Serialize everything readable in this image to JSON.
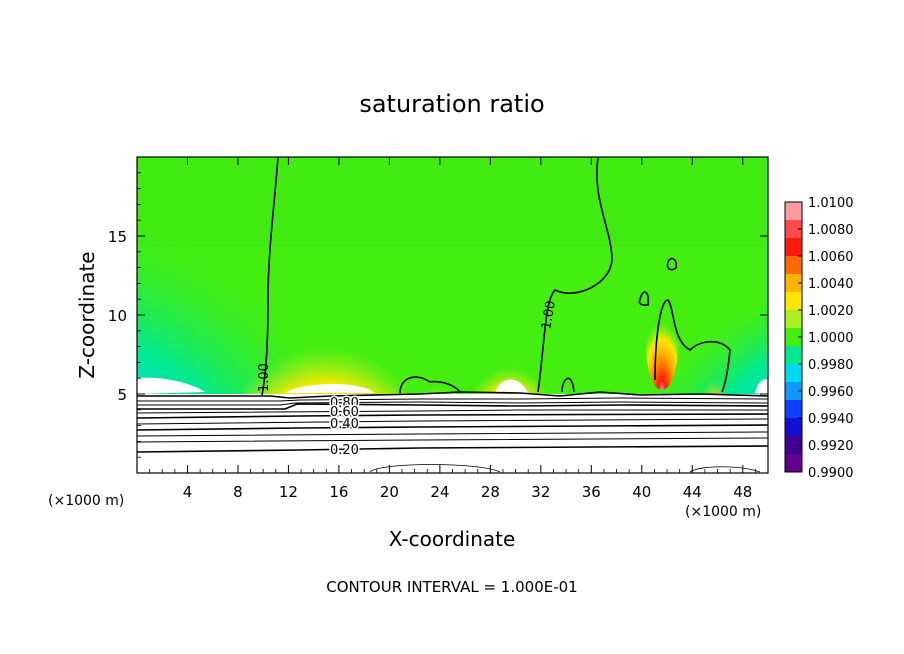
{
  "chart_data": {
    "type": "heatmap",
    "title": "saturation ratio",
    "xlabel": "X-coordinate",
    "ylabel": "Z-coordinate",
    "x_unit_left": "(×1000 m)",
    "x_unit_right": "(×1000 m)",
    "xlim": [
      0,
      50
    ],
    "ylim": [
      0,
      20
    ],
    "xticks": [
      4,
      8,
      12,
      16,
      20,
      24,
      28,
      32,
      36,
      40,
      44,
      48
    ],
    "yticks": [
      5,
      10,
      15
    ],
    "colorbar": {
      "levels": [
        "1.0100",
        "1.0080",
        "1.0060",
        "1.0040",
        "1.0020",
        "1.0000",
        "0.9980",
        "0.9960",
        "0.9940",
        "0.9920",
        "0.9900"
      ],
      "colors": [
        "#ff9aa0",
        "#ff4a4a",
        "#ff1a10",
        "#ff6a00",
        "#ffb400",
        "#ffe600",
        "#a8f020",
        "#44ee10",
        "#00e890",
        "#00d8f0",
        "#1098ff",
        "#1040ff",
        "#1010d0",
        "#400090",
        "#600090"
      ]
    },
    "contour_labels": [
      "1.00",
      "1.00",
      "0.80",
      "0.60",
      "0.40",
      "0.20"
    ],
    "footer": "CONTOUR INTERVAL = 1.000E-01"
  }
}
